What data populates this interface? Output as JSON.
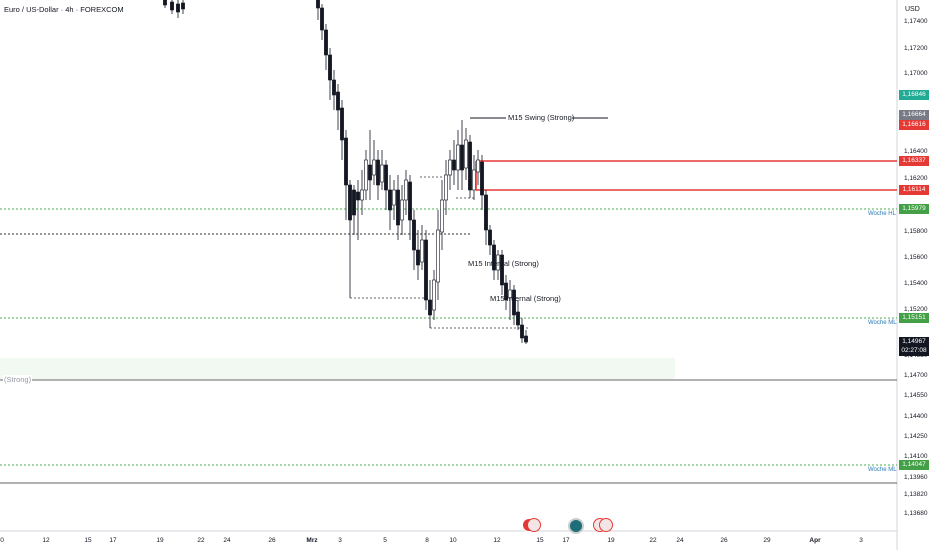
{
  "header": {
    "title": "Euro / US-Dollar · 4h · FOREXCOM",
    "currency": "USD"
  },
  "price_axis": {
    "labels": [
      "1,17400",
      "1,17200",
      "1,17000",
      "1,16400",
      "1,16200",
      "1,15800",
      "1,15600",
      "1,15400",
      "1,15200",
      "1,14850",
      "1,14700",
      "1,14550",
      "1,14400",
      "1,14250",
      "1,14100",
      "1,13960",
      "1,13820",
      "1,13680"
    ]
  },
  "badges": {
    "b1": "1,16846",
    "b2": "1,16664",
    "b3": "1,16616",
    "b4": "1,16337",
    "b5": "1,16114",
    "b6": "1,15979",
    "b7": "1,15151",
    "b8_price": "1,14967",
    "b8_time": "02:27:08",
    "b9": "1,14047"
  },
  "colors": {
    "bull_green": "#22ab94",
    "red_line": "#e53935",
    "grey_badge": "#787b86",
    "dark_badge": "#131722",
    "green_dotted": "#4caf50"
  },
  "time_axis": {
    "labels": [
      "0",
      "12",
      "15",
      "17",
      "19",
      "22",
      "24",
      "26",
      "Mrz",
      "3",
      "5",
      "8",
      "10",
      "12",
      "15",
      "17",
      "19",
      "22",
      "24",
      "26",
      "29",
      "Apr",
      "3"
    ]
  },
  "annotations": {
    "swing": "M15 Swing (Strong)",
    "internal1": "M15 Internal (Strong)",
    "internal2": "M15 Internal (Strong)",
    "zone": "(Strong)",
    "woche1": "Woche HL",
    "woche2": "Woche ML",
    "woche3": "Woche ML"
  },
  "events": [
    "us-flag-icon",
    "globe-icon",
    "us-flag-icon",
    "us-flag-icon"
  ]
}
